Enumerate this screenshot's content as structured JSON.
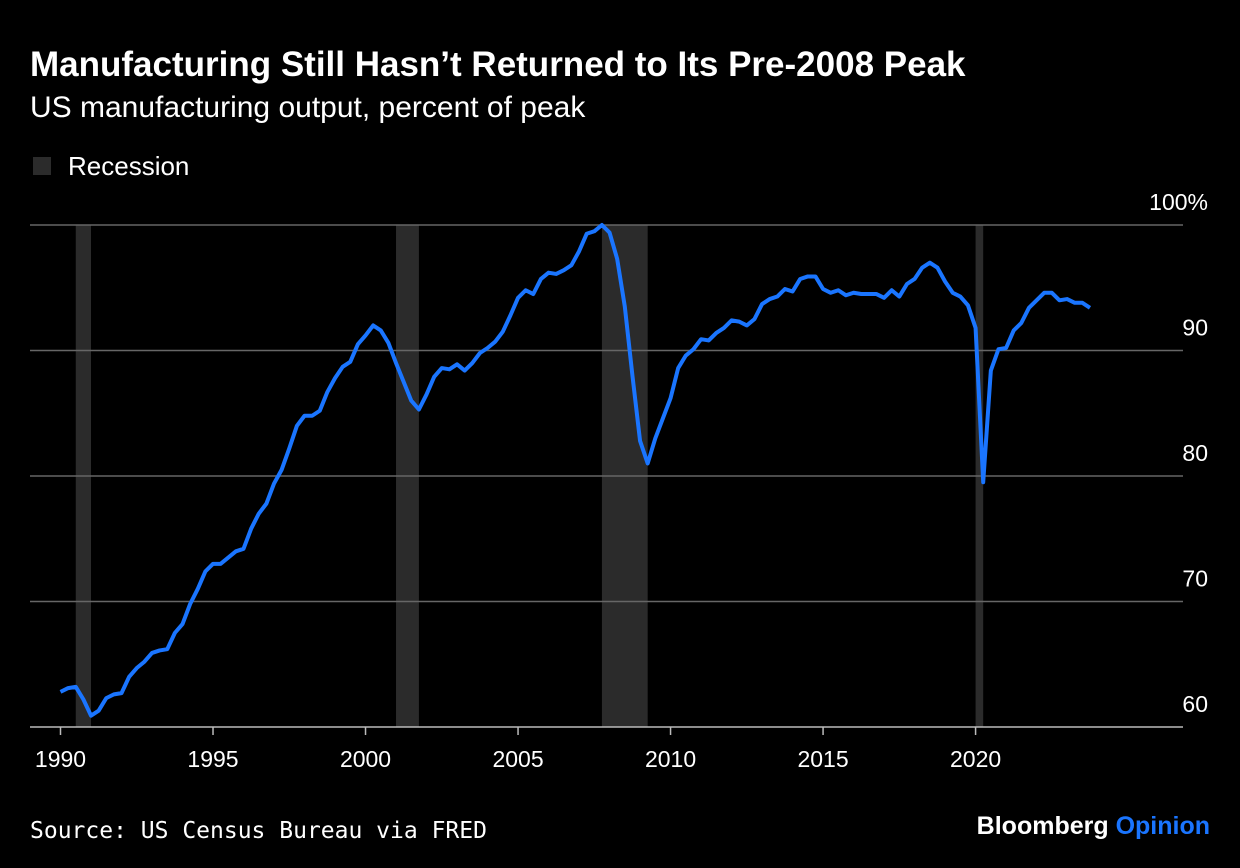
{
  "chart_data": {
    "type": "line",
    "title": "Manufacturing Still Hasn’t Returned to Its Pre-2008 Peak",
    "subtitle": "US manufacturing output, percent of peak",
    "legend_label": "Recession",
    "recession_color": "#2b2b2b",
    "recessions": [
      [
        1990.5,
        1991.0
      ],
      [
        2001.0,
        2001.75
      ],
      [
        2007.75,
        2009.25
      ],
      [
        2020.0,
        2020.25
      ]
    ],
    "source": "Source: US Census Bureau via FRED",
    "brand": "Bloomberg",
    "brand_suffix": "Opinion",
    "xlim": [
      1989,
      2026.8
    ],
    "xticks": [
      1990,
      1995,
      2000,
      2005,
      2010,
      2015,
      2020
    ],
    "ylim": [
      60,
      100
    ],
    "yticks": [
      60,
      70,
      80,
      90,
      {
        "value": 100,
        "label": "100%"
      }
    ],
    "grid": true,
    "series": [
      {
        "name": "US manufacturing output",
        "color": "#1a75ff",
        "x": [
          1990,
          1990.25,
          1990.5,
          1990.75,
          1991,
          1991.25,
          1991.5,
          1991.75,
          1992,
          1992.25,
          1992.5,
          1992.75,
          1993,
          1993.25,
          1993.5,
          1993.75,
          1994,
          1994.25,
          1994.5,
          1994.75,
          1995,
          1995.25,
          1995.5,
          1995.75,
          1996,
          1996.25,
          1996.5,
          1996.75,
          1997,
          1997.25,
          1997.5,
          1997.75,
          1998,
          1998.25,
          1998.5,
          1998.75,
          1999,
          1999.25,
          1999.5,
          1999.75,
          2000,
          2000.25,
          2000.5,
          2000.75,
          2001,
          2001.25,
          2001.5,
          2001.75,
          2002,
          2002.25,
          2002.5,
          2002.75,
          2003,
          2003.25,
          2003.5,
          2003.75,
          2004,
          2004.25,
          2004.5,
          2004.75,
          2005,
          2005.25,
          2005.5,
          2005.75,
          2006,
          2006.25,
          2006.5,
          2006.75,
          2007,
          2007.25,
          2007.5,
          2007.75,
          2008,
          2008.25,
          2008.5,
          2008.75,
          2009,
          2009.25,
          2009.5,
          2009.75,
          2010,
          2010.25,
          2010.5,
          2010.75,
          2011,
          2011.25,
          2011.5,
          2011.75,
          2012,
          2012.25,
          2012.5,
          2012.75,
          2013,
          2013.25,
          2013.5,
          2013.75,
          2014,
          2014.25,
          2014.5,
          2014.75,
          2015,
          2015.25,
          2015.5,
          2015.75,
          2016,
          2016.25,
          2016.5,
          2016.75,
          2017,
          2017.25,
          2017.5,
          2017.75,
          2018,
          2018.25,
          2018.5,
          2018.75,
          2019,
          2019.25,
          2019.5,
          2019.75,
          2020,
          2020.25,
          2020.5,
          2020.75,
          2021,
          2021.25,
          2021.5,
          2021.75,
          2022,
          2022.25,
          2022.5,
          2022.75,
          2023,
          2023.25,
          2023.5,
          2023.75
        ],
        "values": [
          62.8,
          63.1,
          63.2,
          62.2,
          60.9,
          61.3,
          62.3,
          62.6,
          62.7,
          64.0,
          64.7,
          65.2,
          65.9,
          66.1,
          66.2,
          67.5,
          68.2,
          69.8,
          71.0,
          72.4,
          73.0,
          73.0,
          73.5,
          74.0,
          74.2,
          75.8,
          77.0,
          77.8,
          79.4,
          80.5,
          82.2,
          84.0,
          84.8,
          84.8,
          85.2,
          86.7,
          87.8,
          88.7,
          89.1,
          90.5,
          91.2,
          92.0,
          91.6,
          90.6,
          89.0,
          87.5,
          86.0,
          85.3,
          86.5,
          87.9,
          88.6,
          88.5,
          88.9,
          88.4,
          89.0,
          89.8,
          90.2,
          90.7,
          91.5,
          92.8,
          94.2,
          94.8,
          94.5,
          95.7,
          96.2,
          96.1,
          96.4,
          96.8,
          97.9,
          99.3,
          99.5,
          100,
          99.4,
          97.3,
          93.5,
          88.0,
          82.8,
          81.0,
          83.0,
          84.6,
          86.2,
          88.6,
          89.6,
          90.1,
          90.9,
          90.8,
          91.4,
          91.8,
          92.4,
          92.3,
          92.0,
          92.5,
          93.7,
          94.1,
          94.3,
          94.9,
          94.7,
          95.7,
          95.9,
          95.9,
          94.9,
          94.6,
          94.8,
          94.4,
          94.6,
          94.5,
          94.5,
          94.5,
          94.2,
          94.8,
          94.3,
          95.3,
          95.7,
          96.6,
          97.0,
          96.6,
          95.5,
          94.6,
          94.3,
          93.6,
          91.8,
          79.5,
          88.4,
          90.1,
          90.2,
          91.6,
          92.2,
          93.4,
          94.0,
          94.6,
          94.6,
          94.0,
          94.1,
          93.8,
          93.8,
          93.4
        ]
      }
    ]
  }
}
